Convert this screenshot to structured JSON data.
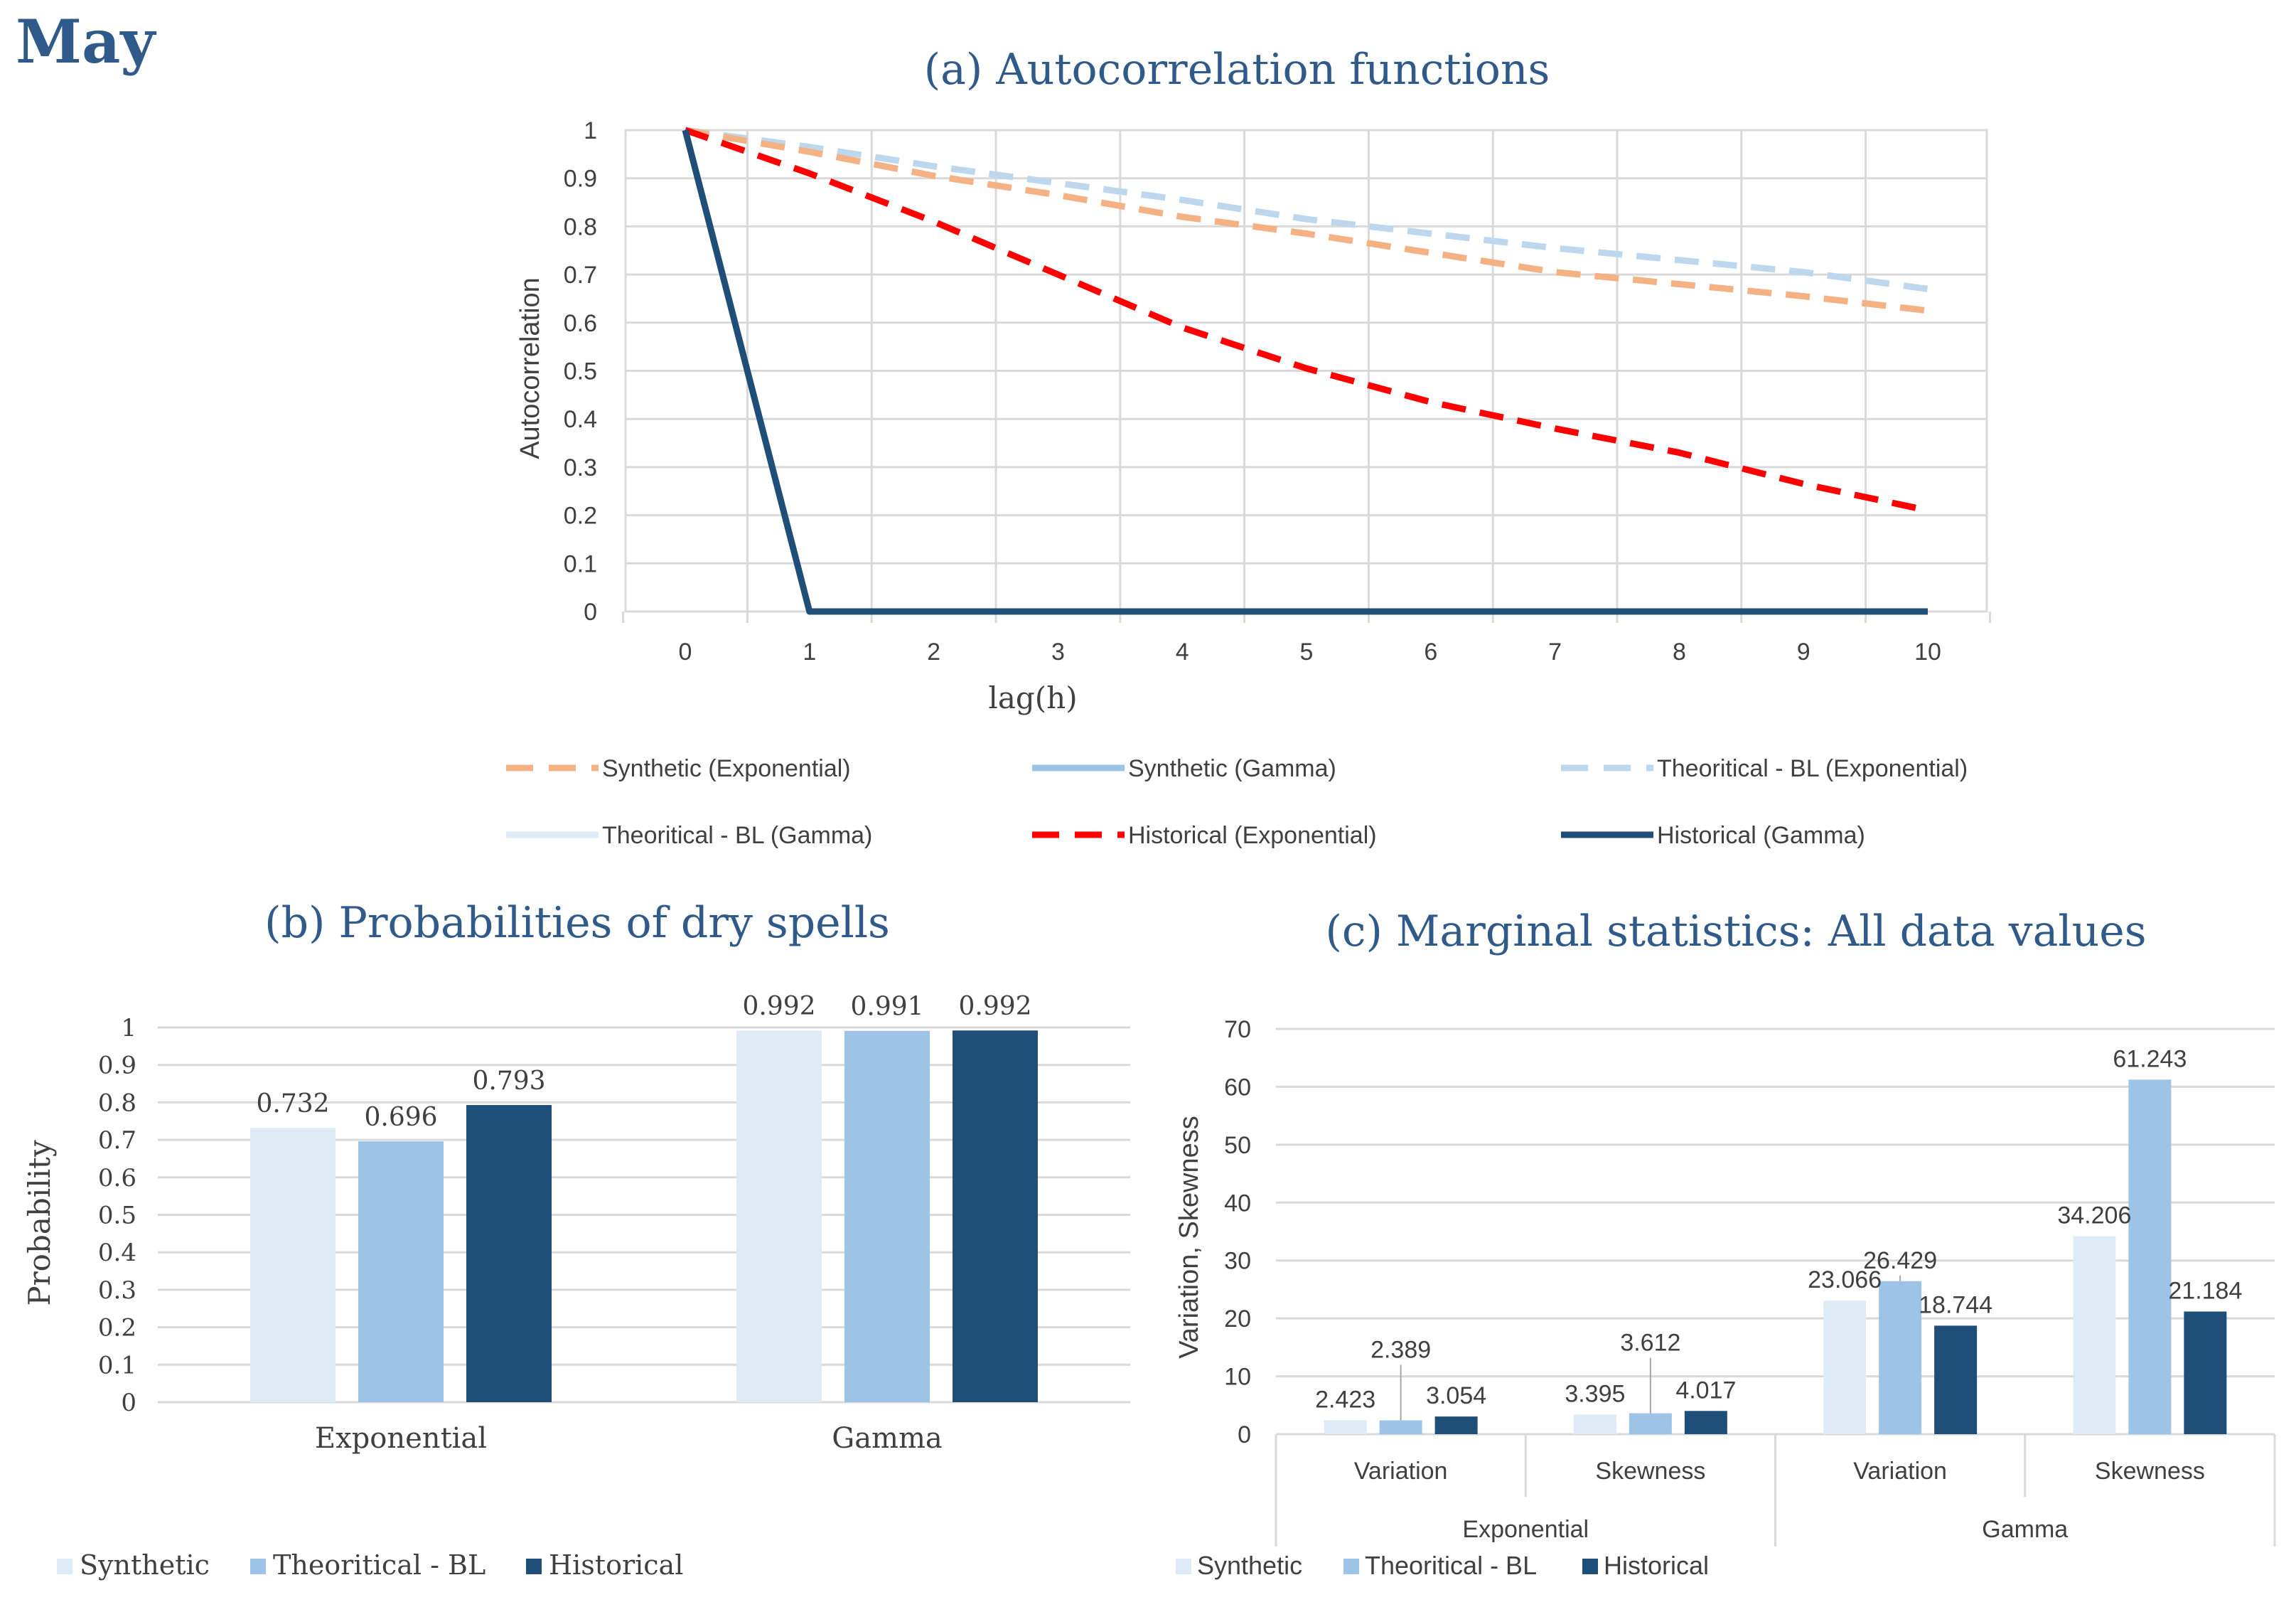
{
  "page_title": "May",
  "colors": {
    "title": "#2f5a8a",
    "grid": "#d9d9d9",
    "axis_text": "#404040",
    "synthetic_exp": "#f4b183",
    "synthetic_gamma": "#9dc3e6",
    "theoretical_exp": "#bdd7ee",
    "theoretical_gamma": "#deebf7",
    "historical_exp": "#ff0000",
    "historical_gamma": "#1f4e79",
    "bar_synthetic": "#deebf7",
    "bar_theoretical": "#9dc3e6",
    "bar_historical": "#1f4e79"
  },
  "chart_data": [
    {
      "id": "a",
      "type": "line",
      "title": "(a) Autocorrelation functions",
      "xlabel": "lag(h)",
      "ylabel": "Autocorrelation",
      "xlim": [
        0,
        10
      ],
      "ylim": [
        0,
        1
      ],
      "x": [
        0,
        1,
        2,
        3,
        4,
        5,
        6,
        7,
        8,
        9,
        10
      ],
      "yticks": [
        "0",
        "0.1",
        "0.2",
        "0.3",
        "0.4",
        "0.5",
        "0.6",
        "0.7",
        "0.8",
        "0.9",
        "1"
      ],
      "xticks": [
        "0",
        "1",
        "2",
        "3",
        "4",
        "5",
        "6",
        "7",
        "8",
        "9",
        "10"
      ],
      "grid": true,
      "legend_position": "bottom",
      "series": [
        {
          "name": "Synthetic (Exponential)",
          "style": "dashed",
          "color": "#f4b183",
          "values": [
            1.0,
            0.955,
            0.905,
            0.865,
            0.82,
            0.785,
            0.745,
            0.705,
            0.68,
            0.655,
            0.625
          ]
        },
        {
          "name": "Synthetic (Gamma)",
          "style": "solid",
          "color": "#9dc3e6",
          "values": [
            1,
            0,
            0,
            0,
            0,
            0,
            0,
            0,
            0,
            0,
            0
          ]
        },
        {
          "name": "Theoritical - BL (Exponential)",
          "style": "dashed",
          "color": "#bdd7ee",
          "values": [
            1.0,
            0.965,
            0.925,
            0.89,
            0.855,
            0.815,
            0.785,
            0.755,
            0.73,
            0.705,
            0.67
          ]
        },
        {
          "name": "Theoritical - BL (Gamma)",
          "style": "solid",
          "color": "#deebf7",
          "values": [
            1,
            0,
            0,
            0,
            0,
            0,
            0,
            0,
            0,
            0,
            0
          ]
        },
        {
          "name": "Historical (Exponential)",
          "style": "dashed",
          "color": "#ff0000",
          "values": [
            1.0,
            0.91,
            0.81,
            0.7,
            0.59,
            0.505,
            0.435,
            0.38,
            0.33,
            0.265,
            0.21
          ]
        },
        {
          "name": "Historical (Gamma)",
          "style": "solid",
          "color": "#1f4e79",
          "values": [
            1,
            0,
            0,
            0,
            0,
            0,
            0,
            0,
            0,
            0,
            0
          ]
        }
      ]
    },
    {
      "id": "b",
      "type": "bar",
      "title": "(b) Probabilities of dry spells",
      "ylabel": "Probability",
      "xlabel": "",
      "ylim": [
        0,
        1
      ],
      "yticks": [
        "0",
        "0.1",
        "0.2",
        "0.3",
        "0.4",
        "0.5",
        "0.6",
        "0.7",
        "0.8",
        "0.9",
        "1"
      ],
      "categories": [
        "Exponential",
        "Gamma"
      ],
      "grid": true,
      "legend_position": "bottom-left",
      "series": [
        {
          "name": "Synthetic",
          "color": "#deebf7",
          "values": [
            0.732,
            0.992
          ],
          "labels": [
            "0.732",
            "0.992"
          ]
        },
        {
          "name": "Theoritical - BL",
          "color": "#9dc3e6",
          "values": [
            0.696,
            0.991
          ],
          "labels": [
            "0.696",
            "0.991"
          ]
        },
        {
          "name": "Historical",
          "color": "#1f4e79",
          "values": [
            0.793,
            0.992
          ],
          "labels": [
            "0.793",
            "0.992"
          ]
        }
      ]
    },
    {
      "id": "c",
      "type": "bar",
      "title": "(c) Marginal statistics: All data values",
      "ylabel": "Variation, Skewness",
      "xlabel": "",
      "ylim": [
        0,
        70
      ],
      "yticks": [
        "0",
        "10",
        "20",
        "30",
        "40",
        "50",
        "60",
        "70"
      ],
      "groups": [
        "Exponential",
        "Gamma"
      ],
      "categories": [
        "Variation",
        "Skewness",
        "Variation",
        "Skewness"
      ],
      "grid": true,
      "legend_position": "bottom-left",
      "series": [
        {
          "name": "Synthetic",
          "color": "#deebf7",
          "values": [
            2.423,
            3.395,
            23.066,
            34.206
          ],
          "labels": [
            "2.423",
            "3.395",
            "23.066",
            "34.206"
          ]
        },
        {
          "name": "Theoritical - BL",
          "color": "#9dc3e6",
          "values": [
            2.389,
            3.612,
            26.429,
            61.243
          ],
          "labels": [
            "2.389",
            "3.612",
            "26.429",
            "61.243"
          ]
        },
        {
          "name": "Historical",
          "color": "#1f4e79",
          "values": [
            3.054,
            4.017,
            18.744,
            21.184
          ],
          "labels": [
            "3.054",
            "4.017",
            "18.744",
            "21.184"
          ]
        }
      ]
    }
  ]
}
